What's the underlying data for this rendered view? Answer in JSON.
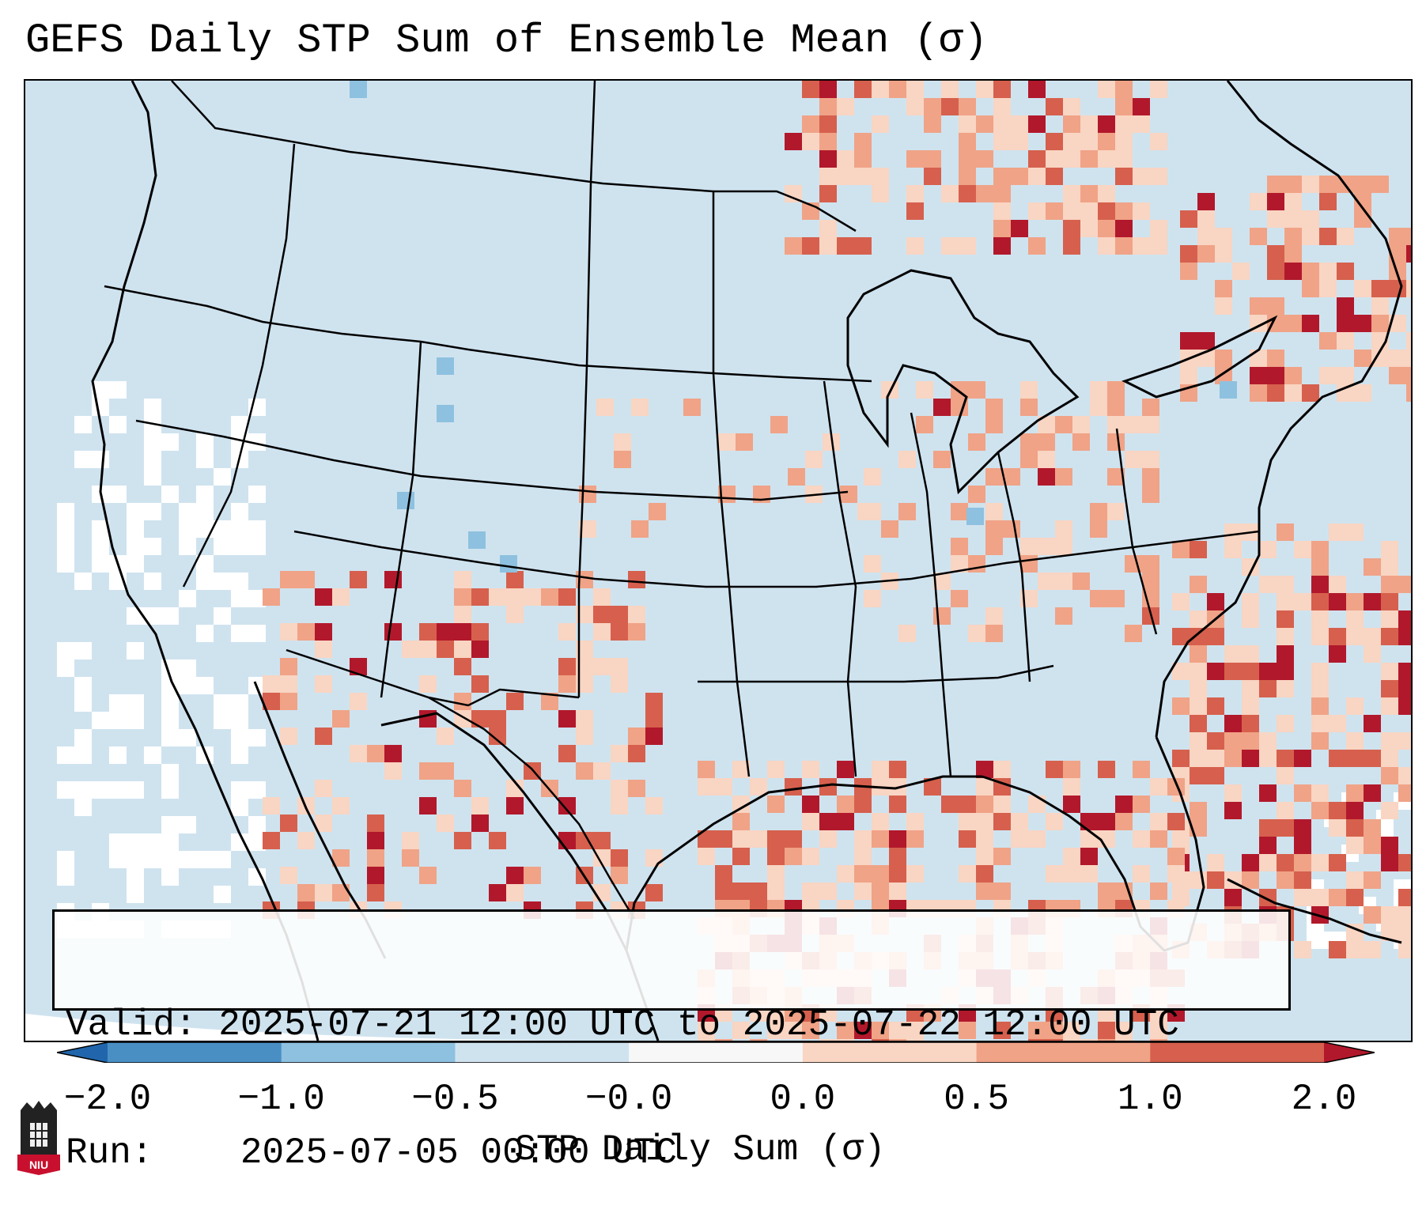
{
  "title": "GEFS Daily STP Sum of Ensemble Mean (σ)",
  "info": {
    "valid_label": "Valid:",
    "valid_text": "2025-07-21 12:00 UTC to 2025-07-22 12:00 UTC",
    "run_label": "Run:",
    "run_text": "2025-07-05 00:00 UTC"
  },
  "colorbar": {
    "label": "STP Daily Sum (σ)",
    "ticks": [
      "−2.0",
      "−1.0",
      "−0.5",
      "−0.0",
      "0.0",
      "0.5",
      "1.0",
      "2.0"
    ],
    "bins": [
      {
        "range": "-2.0 to -1.0",
        "color": "#4a8fc4"
      },
      {
        "range": "-1.0 to -0.5",
        "color": "#8ec1df"
      },
      {
        "range": "-0.5 to -0.0",
        "color": "#cfe3ef"
      },
      {
        "range": "-0.0 to 0.0",
        "color": "#f7f7f7"
      },
      {
        "range": "0.0 to 0.5",
        "color": "#f9d5c3"
      },
      {
        "range": "0.5 to 1.0",
        "color": "#f0a387"
      },
      {
        "range": "1.0 to 2.0",
        "color": "#d6604d"
      }
    ],
    "under_color": "#2166ac",
    "over_color": "#b2182b"
  },
  "map": {
    "region": "Contiguous United States",
    "background_color": "#cfe3ef",
    "border_color": "#000000"
  },
  "logo": {
    "text": "NIU",
    "icon": "niu-logo-icon"
  }
}
